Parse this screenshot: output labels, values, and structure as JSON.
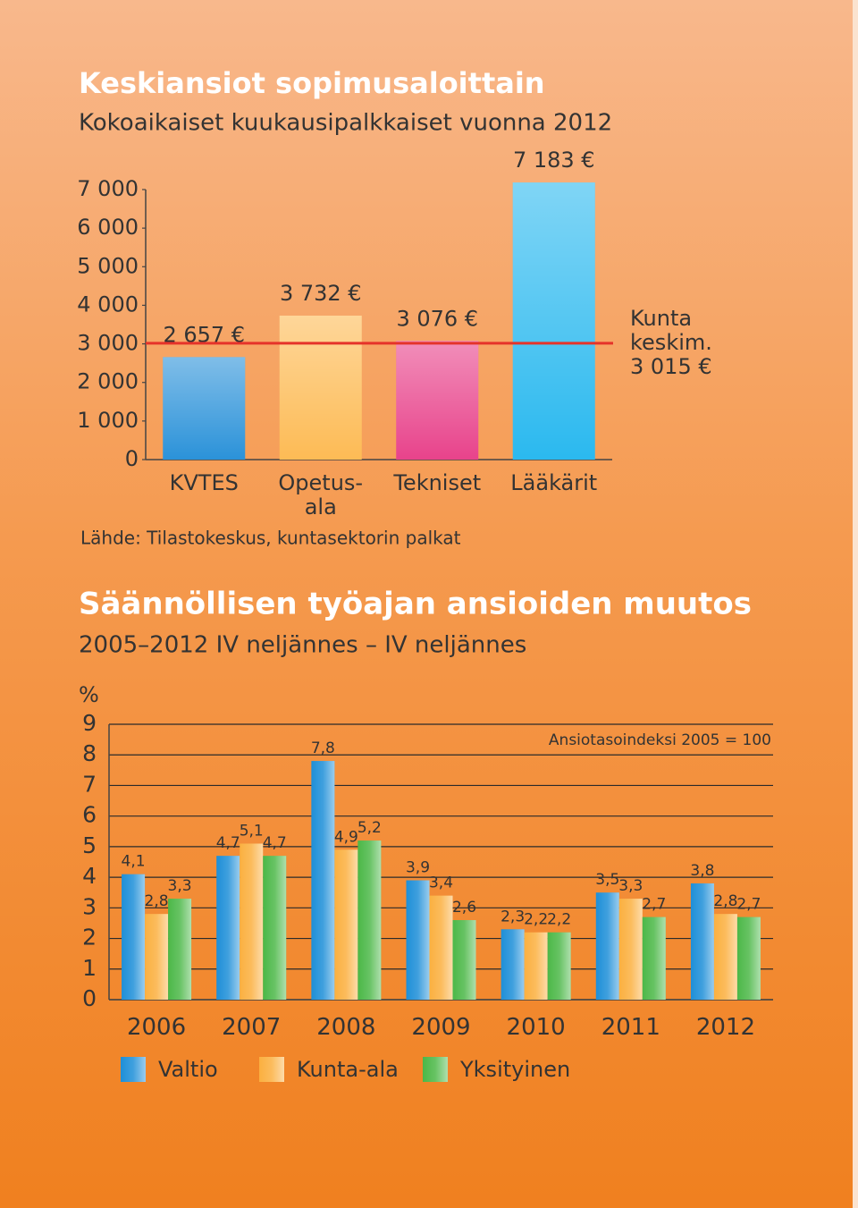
{
  "chart_data": [
    {
      "type": "bar",
      "title": "Keskiansiot sopimusaloittain",
      "subtitle": "Kokoaikaiset kuukausipalkkaiset vuonna 2012",
      "categories": [
        "KVTES",
        "Opetus-\nala",
        "Tekniset",
        "Lääkärit"
      ],
      "values": [
        2657,
        3732,
        3076,
        7183
      ],
      "value_labels": [
        "2 657 €",
        "3 732 €",
        "3 076 €",
        "7 183 €"
      ],
      "colors": [
        "#2b92d9",
        "#fdbb55",
        "#e8438b",
        "#2bb9ef"
      ],
      "reference_line": {
        "value": 3015,
        "label": "Kunta\nkeskim.\n3 015 €",
        "color": "#e5332a"
      },
      "ylim": [
        0,
        7000
      ],
      "yticks": [
        0,
        {
          "value": 1000,
          "label": "1 000"
        },
        {
          "value": 2000,
          "label": "2 000"
        },
        {
          "value": 3000,
          "label": "3 000"
        },
        {
          "value": 4000,
          "label": "4 000"
        },
        {
          "value": 5000,
          "label": "5 000"
        },
        {
          "value": 6000,
          "label": "6 000"
        },
        {
          "value": 7000,
          "label": "7 000"
        }
      ],
      "source": "Lähde: Tilastokeskus, kuntasektorin palkat"
    },
    {
      "type": "bar",
      "title": "Säännöllisen työajan ansioiden muutos",
      "subtitle": "2005–2012 IV neljännes – IV neljännes",
      "y_label": "%",
      "annotation": "Ansiotasoindeksi 2005 = 100",
      "categories": [
        "2006",
        "2007",
        "2008",
        "2009",
        "2010",
        "2011",
        "2012"
      ],
      "series": [
        {
          "name": "Valtio",
          "color": "#1e8fd8",
          "values": [
            4.1,
            4.7,
            7.8,
            3.9,
            2.3,
            3.5,
            3.8
          ],
          "value_labels": [
            "4,1",
            "4,7",
            "7,8",
            "3,9",
            "2,3",
            "3,5",
            "3,8"
          ]
        },
        {
          "name": "Kunta-ala",
          "color": "#fbb040",
          "values": [
            2.8,
            5.1,
            4.9,
            3.4,
            2.2,
            3.3,
            2.8
          ],
          "value_labels": [
            "2,8",
            "5,1",
            "4,9",
            "3,4",
            "2,2",
            "3,3",
            "2,8"
          ]
        },
        {
          "name": "Yksityinen",
          "color": "#4cb848",
          "values": [
            3.3,
            4.7,
            5.2,
            2.6,
            2.2,
            2.7,
            2.7
          ],
          "value_labels": [
            "3,3",
            "4,7",
            "5,2",
            "2,6",
            "2,2",
            "2,7",
            "2,7"
          ]
        }
      ],
      "ylim": [
        0,
        9
      ],
      "yticks": [
        0,
        1,
        2,
        3,
        4,
        5,
        6,
        7,
        8,
        9
      ],
      "grid": true
    }
  ]
}
